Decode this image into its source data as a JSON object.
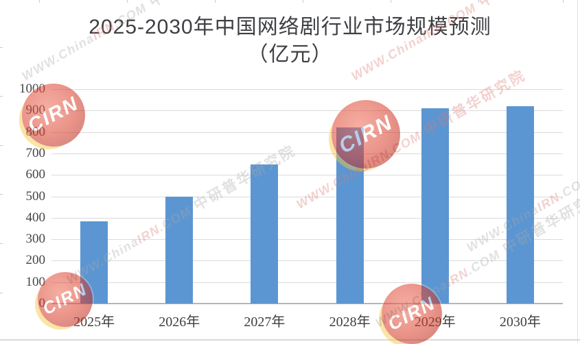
{
  "title": {
    "line1": "2025-2030年中国网络剧行业市场规模预测",
    "line2": "（亿元）"
  },
  "chart_data": {
    "type": "bar",
    "title": "2025-2030年中国网络剧行业市场规模预测（亿元）",
    "unit": "亿元",
    "categories": [
      "2025年",
      "2026年",
      "2027年",
      "2028年",
      "2029年",
      "2030年"
    ],
    "values": [
      383,
      500,
      650,
      820,
      910,
      920
    ],
    "ylim": [
      0,
      1000
    ],
    "yticks": [
      0,
      100,
      200,
      300,
      400,
      500,
      600,
      700,
      800,
      900,
      1000
    ],
    "xlabel": "",
    "ylabel": "",
    "legend": "none",
    "grid": true,
    "bar_color": "#5B96D2",
    "gridline_color": "#DADADA",
    "axis_line_color": "#B5B5B5",
    "label_color": "#454545"
  },
  "watermark": {
    "url_prefix": "WWW.China",
    "url_highlight": "IRN",
    "url_suffix": ".COM",
    "cn_text": "中研普华研究院",
    "logo_text": "CIRN",
    "gray": "#a8a8a8",
    "red": "#d97c74",
    "logo_red": "#C9302C",
    "logo_yellow": "#F6C640"
  }
}
